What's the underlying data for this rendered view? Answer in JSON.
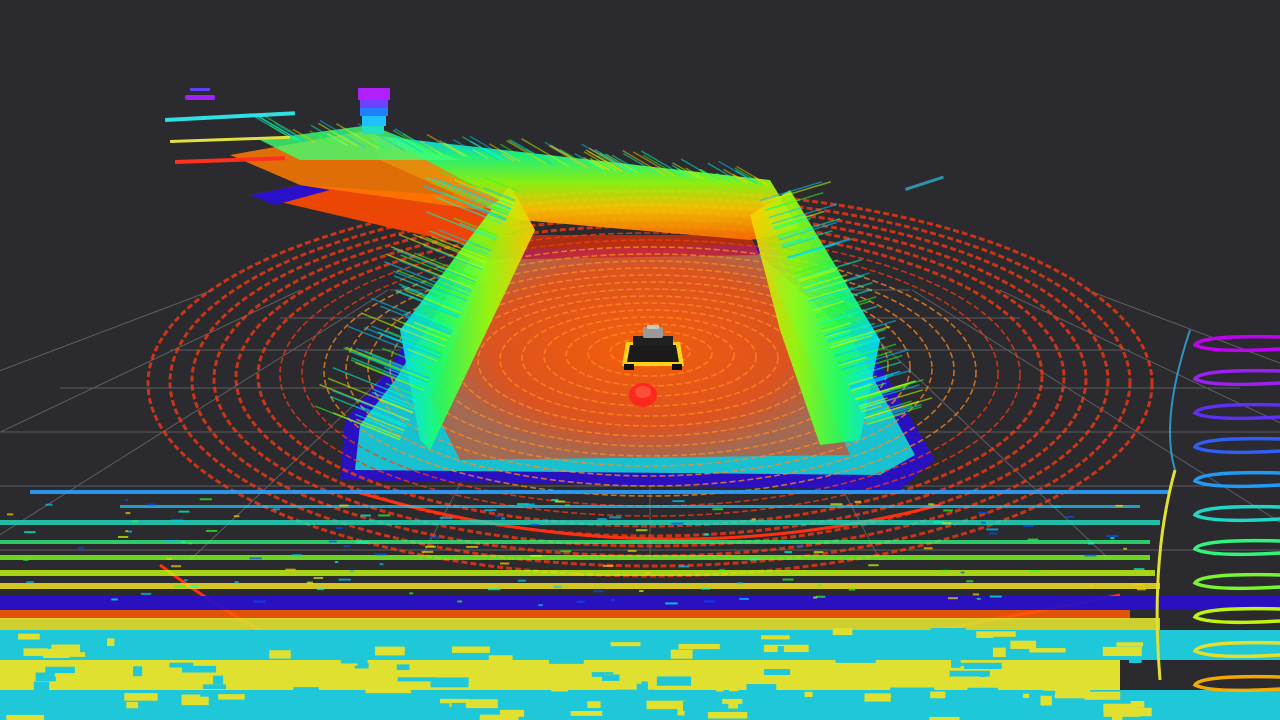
{
  "scene": {
    "description_type": "3d-lidar-point-cloud-render",
    "background_color": "#2b2a2e",
    "grid_color": "#6b6b70",
    "height_colormap": [
      "#ff2a00",
      "#ff7a00",
      "#ffd000",
      "#c8ff00",
      "#28ff28",
      "#00ffd0",
      "#00c8ff",
      "#0050ff",
      "#3a00ff",
      "#c800ff"
    ],
    "floor_colors": [
      "#1ec8d8",
      "#e0e030",
      "#ff5a00"
    ],
    "robot": {
      "body_color": "#1a1a1a",
      "trim_color": "#ffd21a",
      "sensor_color": "#9a9a9a",
      "icon": "robot-icon"
    },
    "goal_marker_color": "#ff2020"
  }
}
